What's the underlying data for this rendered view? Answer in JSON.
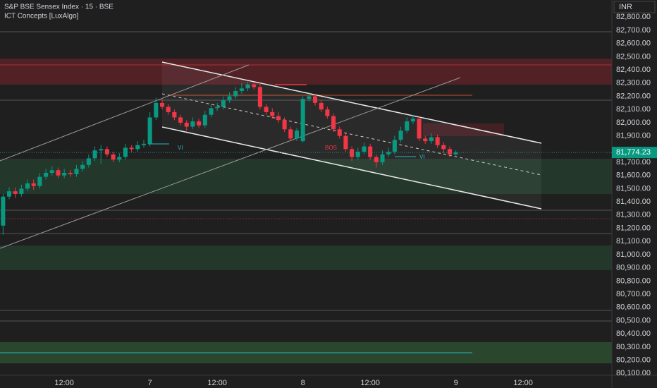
{
  "chart_data": {
    "type": "candlestick",
    "title": "S&P BSE Sensex Index · 15 · BSE",
    "subtitle": "ICT Concepts [LuxAlgo]",
    "currency": "INR",
    "up_color": "#089981",
    "down_color": "#f23645",
    "open": [
      81220,
      81440,
      81480,
      81460,
      81500,
      81540,
      81520,
      81590,
      81620,
      81640,
      81600,
      81620,
      81610,
      81650,
      81680,
      81730,
      81790,
      81800,
      81760,
      81720,
      81740,
      81810,
      81800,
      81830,
      81840,
      82040,
      82150,
      82120,
      82080,
      82040,
      82000,
      81970,
      82010,
      81980,
      82060,
      82110,
      82120,
      82170,
      82200,
      82240,
      82260,
      82290,
      82270,
      82120,
      82080,
      82050,
      82020,
      81950,
      81880,
      81860,
      82180,
      82200,
      82150,
      82100,
      82050,
      81950,
      81900,
      81800,
      81740,
      81780,
      81820,
      81740,
      81700,
      81760,
      81780,
      81870,
      81940,
      82010,
      82030,
      81880,
      81860,
      81890,
      81830,
      81800,
      81760
    ],
    "high": [
      81460,
      81510,
      81510,
      81530,
      81570,
      81570,
      81620,
      81650,
      81670,
      81660,
      81650,
      81640,
      81680,
      81710,
      81760,
      81820,
      81830,
      81820,
      81780,
      81770,
      81840,
      81830,
      81860,
      81870,
      82080,
      82190,
      82180,
      82140,
      82100,
      82060,
      82020,
      82040,
      82030,
      82090,
      82140,
      82150,
      82200,
      82230,
      82270,
      82300,
      82310,
      82300,
      82300,
      82140,
      82110,
      82080,
      82040,
      81970,
      81960,
      82200,
      82230,
      82220,
      82170,
      82120,
      82070,
      81970,
      81920,
      81820,
      81810,
      81850,
      81840,
      81760,
      81790,
      81810,
      81900,
      81970,
      82040,
      82060,
      82050,
      81900,
      81920,
      81910,
      81850,
      81820,
      81790
    ],
    "low": [
      81150,
      81420,
      81430,
      81440,
      81480,
      81490,
      81500,
      81570,
      81600,
      81580,
      81580,
      81590,
      81590,
      81630,
      81660,
      81710,
      81690,
      81740,
      81700,
      81700,
      81720,
      81780,
      81780,
      81810,
      81820,
      82020,
      82100,
      82060,
      82020,
      81980,
      81940,
      81950,
      81960,
      81960,
      82040,
      82090,
      82100,
      82150,
      82180,
      82220,
      82240,
      82250,
      82100,
      82060,
      82030,
      82000,
      81930,
      81860,
      81860,
      81850,
      82160,
      82130,
      82080,
      82030,
      81930,
      81880,
      81780,
      81710,
      81720,
      81760,
      81720,
      81660,
      81680,
      81740,
      81760,
      81850,
      81920,
      81990,
      81860,
      81840,
      81840,
      81810,
      81770,
      81740,
      81750
    ],
    "close": [
      81440,
      81480,
      81460,
      81500,
      81540,
      81520,
      81590,
      81620,
      81640,
      81600,
      81620,
      81610,
      81650,
      81680,
      81730,
      81790,
      81800,
      81760,
      81720,
      81740,
      81810,
      81800,
      81830,
      81840,
      82040,
      82150,
      82120,
      82080,
      82040,
      82000,
      81970,
      82010,
      81980,
      82060,
      82110,
      82120,
      82170,
      82200,
      82240,
      82260,
      82290,
      82270,
      82120,
      82080,
      82050,
      82020,
      81950,
      81880,
      81940,
      82180,
      82200,
      82150,
      82100,
      82050,
      81950,
      81900,
      81800,
      81740,
      81780,
      81820,
      81740,
      81700,
      81760,
      81780,
      81870,
      81940,
      82010,
      82030,
      81880,
      81860,
      81890,
      81830,
      81800,
      81760,
      81774.23
    ],
    "last_price": {
      "value": 81774.23,
      "label": "81,774.23"
    },
    "ylim": [
      80080,
      82930
    ],
    "yticks": [
      {
        "value": 82800,
        "label": "82,800.00"
      },
      {
        "value": 82700,
        "label": "82,700.00"
      },
      {
        "value": 82600,
        "label": "82,600.00"
      },
      {
        "value": 82500,
        "label": "82,500.00"
      },
      {
        "value": 82400,
        "label": "82,400.00"
      },
      {
        "value": 82300,
        "label": "82,300.00"
      },
      {
        "value": 82200,
        "label": "82,200.00"
      },
      {
        "value": 82100,
        "label": "82,100.00"
      },
      {
        "value": 82000,
        "label": "82,000.00"
      },
      {
        "value": 81900,
        "label": "81,900.00"
      },
      {
        "value": 81700,
        "label": "81,700.00"
      },
      {
        "value": 81600,
        "label": "81,600.00"
      },
      {
        "value": 81500,
        "label": "81,500.00"
      },
      {
        "value": 81400,
        "label": "81,400.00"
      },
      {
        "value": 81300,
        "label": "81,300.00"
      },
      {
        "value": 81200,
        "label": "81,200.00"
      },
      {
        "value": 81100,
        "label": "81,100.00"
      },
      {
        "value": 81000,
        "label": "81,000.00"
      },
      {
        "value": 80900,
        "label": "80,900.00"
      },
      {
        "value": 80800,
        "label": "80,800.00"
      },
      {
        "value": 80700,
        "label": "80,700.00"
      },
      {
        "value": 80600,
        "label": "80,600.00"
      },
      {
        "value": 80500,
        "label": "80,500.00"
      },
      {
        "value": 80400,
        "label": "80,400.00"
      },
      {
        "value": 80300,
        "label": "80,300.00"
      },
      {
        "value": 80200,
        "label": "80,200.00"
      },
      {
        "value": 80100,
        "label": "80,100.00"
      }
    ],
    "xlim": [
      -0.5,
      99.5
    ],
    "xticks": [
      {
        "value": 10,
        "label": "12:00"
      },
      {
        "value": 24,
        "label": "7"
      },
      {
        "value": 35,
        "label": "12:00"
      },
      {
        "value": 49,
        "label": "8"
      },
      {
        "value": 60,
        "label": "12:00"
      },
      {
        "value": 74,
        "label": "9"
      },
      {
        "value": 85,
        "label": "12:00"
      }
    ],
    "annotations": [
      "VI",
      "BOS",
      "VI"
    ]
  }
}
